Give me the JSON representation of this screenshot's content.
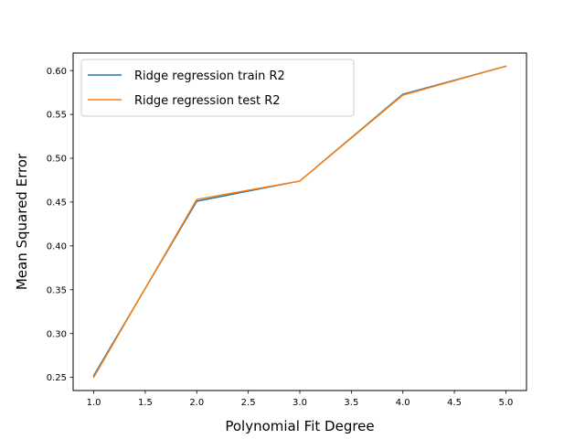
{
  "chart_data": {
    "type": "line",
    "xlabel": "Polynomial Fit Degree",
    "ylabel": "Mean Squared Error",
    "xlim": [
      0.8,
      5.2
    ],
    "ylim": [
      0.235,
      0.62
    ],
    "x_ticks": [
      1.0,
      1.5,
      2.0,
      2.5,
      3.0,
      3.5,
      4.0,
      4.5,
      5.0
    ],
    "y_ticks": [
      0.25,
      0.3,
      0.35,
      0.4,
      0.45,
      0.5,
      0.55,
      0.6
    ],
    "x_tick_labels": [
      "1.0",
      "1.5",
      "2.0",
      "2.5",
      "3.0",
      "3.5",
      "4.0",
      "4.5",
      "5.0"
    ],
    "y_tick_labels": [
      "0.25",
      "0.30",
      "0.35",
      "0.40",
      "0.45",
      "0.50",
      "0.55",
      "0.60"
    ],
    "legend_position": "top-left",
    "grid": false,
    "x": [
      1,
      2,
      3,
      4,
      5
    ],
    "series": [
      {
        "name": "Ridge regression train R2",
        "color": "#1f77b4",
        "values": [
          0.252,
          0.451,
          0.474,
          0.573,
          0.605
        ]
      },
      {
        "name": "Ridge regression test R2",
        "color": "#ff7f0e",
        "values": [
          0.25,
          0.453,
          0.474,
          0.572,
          0.605
        ]
      }
    ]
  }
}
